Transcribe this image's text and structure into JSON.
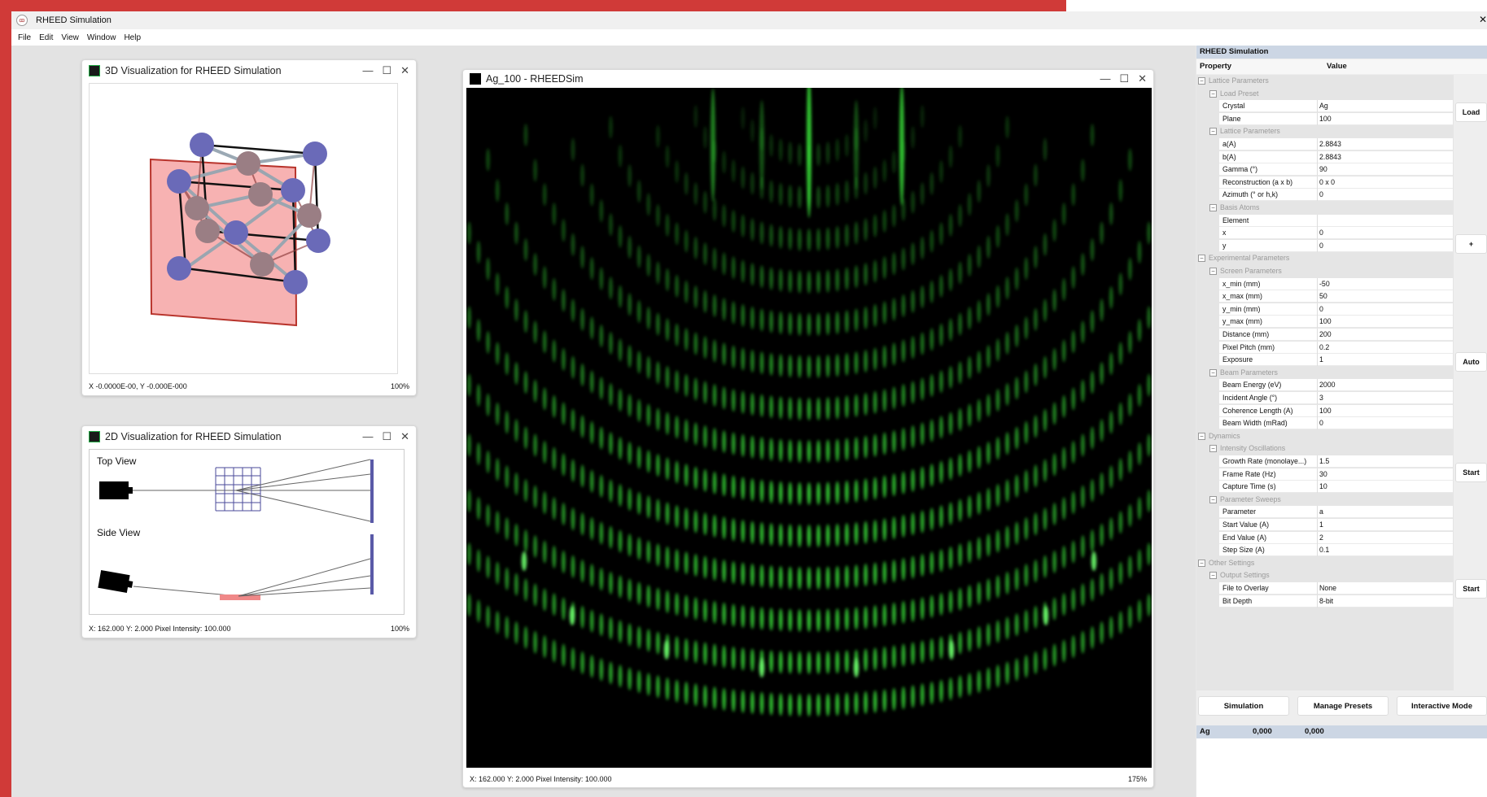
{
  "app": {
    "title": "RHEED Simulation",
    "close": "✕"
  },
  "menu": [
    "File",
    "Edit",
    "View",
    "Window",
    "Help"
  ],
  "window_3d": {
    "title": "3D Visualization for RHEED Simulation",
    "status_left": "X -0.0000E-00, Y -0.000E-000",
    "status_right": "100%"
  },
  "window_2d": {
    "title": "2D Visualization for RHEED Simulation",
    "top_view": "Top View",
    "side_view": "Side View",
    "status_left": "X: 162.000 Y: 2.000 Pixel Intensity: 100.000",
    "status_right": "100%"
  },
  "window_rheed": {
    "title": "Ag_100 - RHEEDSim",
    "status_left": "X: 162.000 Y: 2.000 Pixel Intensity: 100.000",
    "status_right": "175%"
  },
  "controls": {
    "minimize": "—",
    "maximize": "☐",
    "close": "✕"
  },
  "colors": {
    "accent_red": "#d03a38",
    "pattern_green": "#3be83b",
    "atom_blue": "#6a6ab8",
    "atom_mauve": "#9a7e84",
    "slab_pink": "#f7b2b2"
  },
  "props": {
    "title": "RHEED Simulation",
    "col_property": "Property",
    "col_value": "Value",
    "tree": [
      {
        "kind": "cat",
        "level": 0,
        "label": "Lattice Parameters"
      },
      {
        "kind": "cat",
        "level": 1,
        "label": "Load Preset"
      },
      {
        "kind": "prop",
        "label": "Crystal",
        "value": "Ag"
      },
      {
        "kind": "prop",
        "label": "Plane",
        "value": "100"
      },
      {
        "kind": "cat",
        "level": 1,
        "label": "Lattice Parameters"
      },
      {
        "kind": "prop",
        "label": "a(A)",
        "value": "2.8843"
      },
      {
        "kind": "prop",
        "label": "b(A)",
        "value": "2.8843"
      },
      {
        "kind": "prop",
        "label": "Gamma (°)",
        "value": "90"
      },
      {
        "kind": "prop",
        "label": "Reconstruction (a x b)",
        "value": "0 x 0"
      },
      {
        "kind": "prop",
        "label": "Azimuth (° or h,k)",
        "value": "0"
      },
      {
        "kind": "cat",
        "level": 1,
        "label": "Basis Atoms"
      },
      {
        "kind": "prop",
        "label": "Element",
        "value": ""
      },
      {
        "kind": "prop",
        "label": "x",
        "value": "0"
      },
      {
        "kind": "prop",
        "label": "y",
        "value": "0"
      },
      {
        "kind": "cat",
        "level": 0,
        "label": "Experimental Parameters"
      },
      {
        "kind": "cat",
        "level": 1,
        "label": "Screen Parameters"
      },
      {
        "kind": "prop",
        "label": "x_min (mm)",
        "value": "-50"
      },
      {
        "kind": "prop",
        "label": "x_max (mm)",
        "value": "50"
      },
      {
        "kind": "prop",
        "label": "y_min (mm)",
        "value": "0"
      },
      {
        "kind": "prop",
        "label": "y_max (mm)",
        "value": "100"
      },
      {
        "kind": "prop",
        "label": "Distance (mm)",
        "value": "200"
      },
      {
        "kind": "prop",
        "label": "Pixel Pitch (mm)",
        "value": "0.2"
      },
      {
        "kind": "prop",
        "label": "Exposure",
        "value": "1"
      },
      {
        "kind": "cat",
        "level": 1,
        "label": "Beam Parameters"
      },
      {
        "kind": "prop",
        "label": "Beam Energy (eV)",
        "value": "2000"
      },
      {
        "kind": "prop",
        "label": "Incident Angle (°)",
        "value": "3"
      },
      {
        "kind": "prop",
        "label": "Coherence Length (A)",
        "value": "100"
      },
      {
        "kind": "prop",
        "label": "Beam Width (mRad)",
        "value": "0"
      },
      {
        "kind": "cat",
        "level": 0,
        "label": "Dynamics"
      },
      {
        "kind": "cat",
        "level": 1,
        "label": "Intensity Oscillations"
      },
      {
        "kind": "prop",
        "label": "Growth Rate (monolaye...)",
        "value": "1.5"
      },
      {
        "kind": "prop",
        "label": "Frame Rate (Hz)",
        "value": "30"
      },
      {
        "kind": "prop",
        "label": "Capture Time (s)",
        "value": "10"
      },
      {
        "kind": "cat",
        "level": 1,
        "label": "Parameter Sweeps"
      },
      {
        "kind": "prop",
        "label": "Parameter",
        "value": "a"
      },
      {
        "kind": "prop",
        "label": "Start Value (A)",
        "value": "1"
      },
      {
        "kind": "prop",
        "label": "End Value (A)",
        "value": "2"
      },
      {
        "kind": "prop",
        "label": "Step Size (A)",
        "value": "0.1"
      },
      {
        "kind": "cat",
        "level": 0,
        "label": "Other Settings"
      },
      {
        "kind": "cat",
        "level": 1,
        "label": "Output Settings"
      },
      {
        "kind": "prop",
        "label": "File to Overlay",
        "value": "None"
      },
      {
        "kind": "prop",
        "label": "Bit Depth",
        "value": "8-bit"
      }
    ],
    "side_buttons": [
      "Load",
      "+",
      "Auto",
      "Start",
      "Start"
    ],
    "tabs": [
      "Simulation",
      "Manage Presets",
      "Interactive Mode"
    ],
    "atom_row": {
      "element": "Ag",
      "x": "0,000",
      "y": "0,000"
    }
  }
}
